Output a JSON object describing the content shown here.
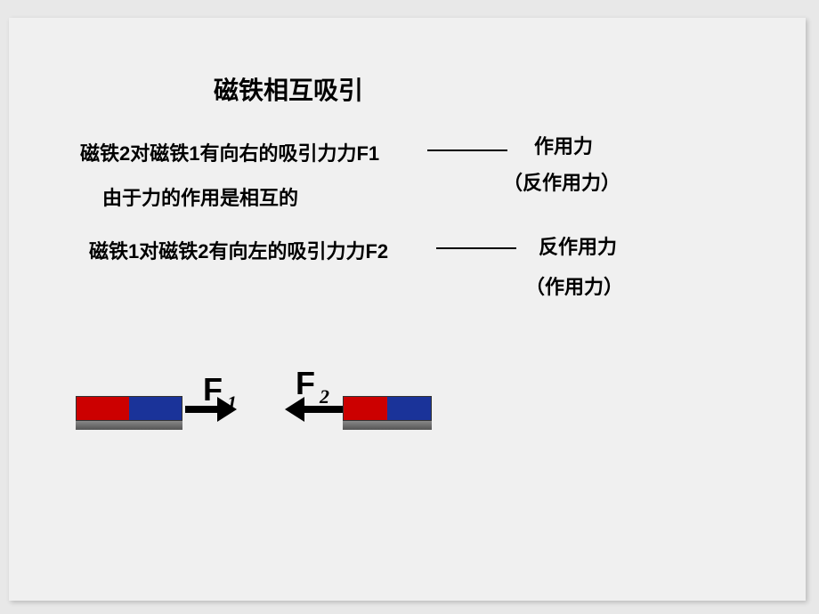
{
  "slide": {
    "background": "#f0f0f0",
    "outer_background": "#e8e8e8",
    "title": "磁铁相互吸引",
    "text_line1": "磁铁2对磁铁1有向右的吸引力力F1",
    "text_line2": "由于力的作用是相互的",
    "text_line3": "磁铁1对磁铁2有向左的吸引力力F2",
    "label_action": "作用力",
    "label_reaction_paren": "（反作用力）",
    "label_reaction": "反作用力",
    "label_action_paren": "（作用力）",
    "title_fontsize": 28,
    "body_fontsize": 22,
    "text_color": "#000000"
  },
  "forces": {
    "f1": {
      "symbol": "F",
      "subscript": "1",
      "direction": "right",
      "color": "#000000"
    },
    "f2": {
      "symbol": "F",
      "subscript": "2",
      "direction": "left",
      "color": "#000000"
    }
  },
  "magnets": {
    "magnet1": {
      "left_half_color": "#cc0000",
      "right_half_color": "#1a3399",
      "border_color": "#333333",
      "base_color": "#777777"
    },
    "magnet2": {
      "left_half_color": "#cc0000",
      "right_half_color": "#1a3399",
      "border_color": "#333333",
      "base_color": "#777777"
    }
  },
  "connectors": {
    "color": "#000000",
    "thickness": 2
  }
}
